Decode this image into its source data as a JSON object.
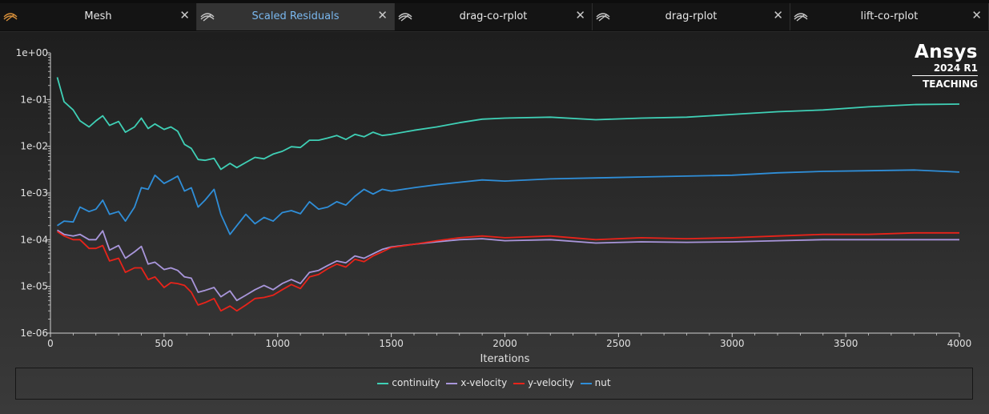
{
  "tabs": [
    {
      "label": "Mesh",
      "active": false,
      "icon": "mesh-icon"
    },
    {
      "label": "Scaled Residuals",
      "active": true,
      "icon": "plot-icon"
    },
    {
      "label": "drag-co-rplot",
      "active": false,
      "icon": "plot-icon"
    },
    {
      "label": "drag-rplot",
      "active": false,
      "icon": "plot-icon"
    },
    {
      "label": "lift-co-rplot",
      "active": false,
      "icon": "plot-icon"
    }
  ],
  "tab_close_glyph": "✕",
  "logo": {
    "brand": "Ansys",
    "version": "2024 R1",
    "edition": "TEACHING"
  },
  "colors": {
    "continuity": "#3fd0b6",
    "x-velocity": "#a996db",
    "y-velocity": "#e8231a",
    "nut": "#2f8ed8",
    "axis": "#cfcfcf"
  },
  "chart_data": {
    "type": "line",
    "xlabel": "Iterations",
    "ylabel": "",
    "title": "",
    "xlim": [
      0,
      4000
    ],
    "ylim": [
      1e-06,
      1
    ],
    "y_scale": "log",
    "x_ticks": [
      "0",
      "500",
      "1000",
      "1500",
      "2000",
      "2500",
      "3000",
      "3500",
      "4000"
    ],
    "y_ticks": [
      "1e-06",
      "1e-05",
      "1e-04",
      "1e-03",
      "1e-02",
      "1e-01",
      "1e+00"
    ],
    "legend_position": "bottom",
    "grid": false,
    "series": [
      {
        "name": "continuity",
        "x": [
          30,
          60,
          100,
          130,
          170,
          200,
          230,
          260,
          300,
          330,
          370,
          400,
          430,
          460,
          500,
          530,
          560,
          590,
          620,
          650,
          680,
          720,
          750,
          790,
          820,
          860,
          900,
          940,
          980,
          1020,
          1060,
          1100,
          1140,
          1180,
          1220,
          1260,
          1300,
          1340,
          1380,
          1420,
          1460,
          1500,
          1600,
          1700,
          1800,
          1900,
          2000,
          2200,
          2400,
          2600,
          2800,
          3000,
          3200,
          3400,
          3600,
          3800,
          4000
        ],
        "y": [
          0.3,
          0.09,
          0.06,
          0.035,
          0.026,
          0.035,
          0.045,
          0.028,
          0.034,
          0.02,
          0.026,
          0.04,
          0.024,
          0.03,
          0.023,
          0.026,
          0.021,
          0.011,
          0.009,
          0.0052,
          0.005,
          0.0055,
          0.0032,
          0.0043,
          0.0035,
          0.0045,
          0.0058,
          0.0054,
          0.0068,
          0.0078,
          0.0098,
          0.0094,
          0.0135,
          0.0135,
          0.015,
          0.017,
          0.014,
          0.018,
          0.016,
          0.02,
          0.017,
          0.018,
          0.022,
          0.026,
          0.032,
          0.038,
          0.04,
          0.042,
          0.037,
          0.04,
          0.042,
          0.048,
          0.055,
          0.06,
          0.07,
          0.078,
          0.08
        ]
      },
      {
        "name": "x-velocity",
        "x": [
          30,
          60,
          100,
          130,
          170,
          200,
          230,
          260,
          300,
          330,
          370,
          400,
          430,
          460,
          500,
          530,
          560,
          590,
          620,
          650,
          680,
          720,
          750,
          790,
          820,
          860,
          900,
          940,
          980,
          1020,
          1060,
          1100,
          1140,
          1180,
          1220,
          1260,
          1300,
          1340,
          1380,
          1420,
          1460,
          1500,
          1600,
          1700,
          1800,
          1900,
          2000,
          2200,
          2400,
          2600,
          2800,
          3000,
          3200,
          3400,
          3600,
          3800,
          4000
        ],
        "y": [
          0.00016,
          0.00013,
          0.00012,
          0.00013,
          0.0001,
          0.0001,
          0.000155,
          6e-05,
          7.5e-05,
          4e-05,
          5.5e-05,
          7.2e-05,
          3e-05,
          3.3e-05,
          2.3e-05,
          2.5e-05,
          2.2e-05,
          1.6e-05,
          1.5e-05,
          7.5e-06,
          8.2e-06,
          9.5e-06,
          6e-06,
          8e-06,
          5e-06,
          6.5e-06,
          8.5e-06,
          1.05e-05,
          8.5e-06,
          1.15e-05,
          1.4e-05,
          1.15e-05,
          2e-05,
          2.2e-05,
          2.8e-05,
          3.5e-05,
          3.2e-05,
          4.5e-05,
          4e-05,
          5e-05,
          6.2e-05,
          7e-05,
          8e-05,
          9e-05,
          0.0001,
          0.000105,
          9.5e-05,
          0.0001,
          8.5e-05,
          9e-05,
          8.8e-05,
          9e-05,
          9.5e-05,
          0.0001,
          0.0001,
          0.0001,
          0.0001
        ]
      },
      {
        "name": "y-velocity",
        "x": [
          30,
          60,
          100,
          130,
          170,
          200,
          230,
          260,
          300,
          330,
          370,
          400,
          430,
          460,
          500,
          530,
          560,
          590,
          620,
          650,
          680,
          720,
          750,
          790,
          820,
          860,
          900,
          940,
          980,
          1020,
          1060,
          1100,
          1140,
          1180,
          1220,
          1260,
          1300,
          1340,
          1380,
          1420,
          1460,
          1500,
          1600,
          1700,
          1800,
          1900,
          2000,
          2200,
          2400,
          2600,
          2800,
          3000,
          3200,
          3400,
          3600,
          3800,
          4000
        ],
        "y": [
          0.00015,
          0.00012,
          0.0001,
          0.0001,
          6.5e-05,
          6.5e-05,
          7.5e-05,
          3.5e-05,
          4e-05,
          2e-05,
          2.5e-05,
          2.5e-05,
          1.4e-05,
          1.6e-05,
          9.5e-06,
          1.2e-05,
          1.15e-05,
          1.05e-05,
          7.5e-06,
          4e-06,
          4.5e-06,
          5.5e-06,
          3e-06,
          3.8e-06,
          3e-06,
          4e-06,
          5.5e-06,
          5.8e-06,
          6.5e-06,
          8.5e-06,
          1.1e-05,
          9e-06,
          1.6e-05,
          1.8e-05,
          2.4e-05,
          3e-05,
          2.6e-05,
          3.8e-05,
          3.4e-05,
          4.5e-05,
          5.5e-05,
          6.8e-05,
          8e-05,
          9.5e-05,
          0.00011,
          0.00012,
          0.00011,
          0.00012,
          0.0001,
          0.00011,
          0.000105,
          0.00011,
          0.00012,
          0.00013,
          0.00013,
          0.00014,
          0.00014
        ]
      },
      {
        "name": "nut",
        "x": [
          30,
          60,
          100,
          130,
          170,
          200,
          230,
          260,
          300,
          330,
          370,
          400,
          430,
          460,
          500,
          530,
          560,
          590,
          620,
          650,
          680,
          720,
          750,
          790,
          820,
          860,
          900,
          940,
          980,
          1020,
          1060,
          1100,
          1140,
          1180,
          1220,
          1260,
          1300,
          1340,
          1380,
          1420,
          1460,
          1500,
          1600,
          1700,
          1800,
          1900,
          2000,
          2200,
          2400,
          2600,
          2800,
          3000,
          3200,
          3400,
          3600,
          3800,
          4000
        ],
        "y": [
          0.0002,
          0.00025,
          0.00024,
          0.0005,
          0.0004,
          0.00045,
          0.0007,
          0.00035,
          0.0004,
          0.00025,
          0.0005,
          0.0013,
          0.0012,
          0.0024,
          0.0016,
          0.0019,
          0.0023,
          0.0011,
          0.0013,
          0.0005,
          0.0007,
          0.0012,
          0.00035,
          0.00013,
          0.0002,
          0.00035,
          0.00022,
          0.0003,
          0.00025,
          0.00038,
          0.00042,
          0.00036,
          0.00065,
          0.00045,
          0.0005,
          0.00065,
          0.00055,
          0.00085,
          0.0012,
          0.00095,
          0.0012,
          0.0011,
          0.0013,
          0.0015,
          0.0017,
          0.0019,
          0.0018,
          0.002,
          0.0021,
          0.0022,
          0.0023,
          0.0024,
          0.0027,
          0.0029,
          0.003,
          0.0031,
          0.0028
        ]
      }
    ]
  }
}
